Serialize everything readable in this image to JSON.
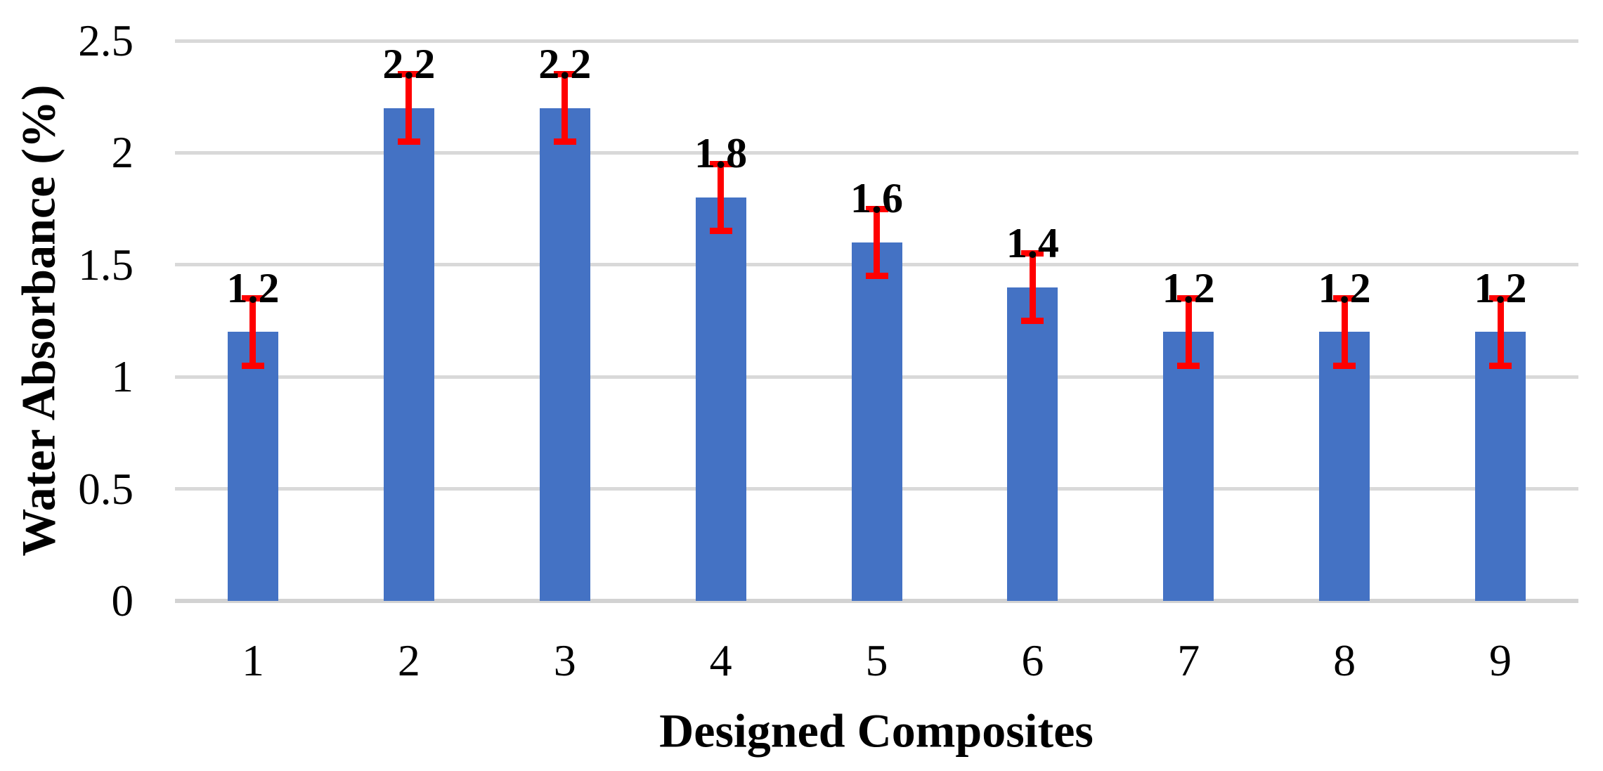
{
  "chart_data": {
    "type": "bar",
    "xlabel": "Designed Composites",
    "ylabel": "Water Absorbance (%)",
    "categories": [
      "1",
      "2",
      "3",
      "4",
      "5",
      "6",
      "7",
      "8",
      "9"
    ],
    "series": [
      {
        "name": "Water Absorbance",
        "values": [
          1.2,
          2.2,
          2.2,
          1.8,
          1.6,
          1.4,
          1.2,
          1.2,
          1.2
        ],
        "data_labels": [
          "1.2",
          "2.2",
          "2.2",
          "1.8",
          "1.6",
          "1.4",
          "1.2",
          "1.2",
          "1.2"
        ],
        "error_bar": 0.15
      }
    ],
    "ylim": [
      0,
      2.5
    ],
    "yticks": [
      {
        "value": 0,
        "label": "0"
      },
      {
        "value": 0.5,
        "label": "0.5"
      },
      {
        "value": 1,
        "label": "1"
      },
      {
        "value": 1.5,
        "label": "1.5"
      },
      {
        "value": 2,
        "label": "2"
      },
      {
        "value": 2.5,
        "label": "2.5"
      }
    ],
    "grid": true,
    "legend": false,
    "colors": {
      "bar": "#4472C4",
      "error_bar": "#FF0000",
      "gridline": "#D9D9D9",
      "axis_line": "#D2D2D2",
      "text": "#000000"
    }
  }
}
